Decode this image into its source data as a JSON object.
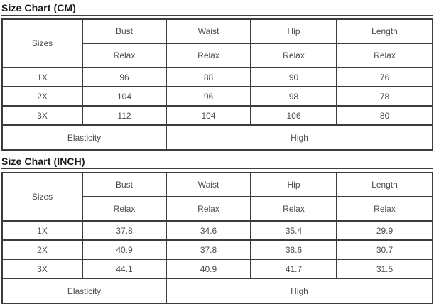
{
  "colors": {
    "table_border": "#3c3c3c",
    "cell_text": "#4d4d4d",
    "title_text": "#1b1b1b",
    "background": "#ffffff"
  },
  "tables": [
    {
      "title": "Size Chart (CM)",
      "sizes_label": "Sizes",
      "columns": [
        "Bust",
        "Waist",
        "Hip",
        "Length"
      ],
      "fit_labels": [
        "Relax",
        "Relax",
        "Relax",
        "Relax"
      ],
      "rows": [
        {
          "size": "1X",
          "values": [
            "96",
            "88",
            "90",
            "76"
          ]
        },
        {
          "size": "2X",
          "values": [
            "104",
            "96",
            "98",
            "78"
          ]
        },
        {
          "size": "3X",
          "values": [
            "112",
            "104",
            "106",
            "80"
          ]
        }
      ],
      "elasticity_label": "Elasticity",
      "elasticity_value": "High"
    },
    {
      "title": "Size Chart (INCH)",
      "sizes_label": "Sizes",
      "columns": [
        "Bust",
        "Waist",
        "Hip",
        "Length"
      ],
      "fit_labels": [
        "Relax",
        "Relax",
        "Relax",
        "Relax"
      ],
      "rows": [
        {
          "size": "1X",
          "values": [
            "37.8",
            "34.6",
            "35.4",
            "29.9"
          ]
        },
        {
          "size": "2X",
          "values": [
            "40.9",
            "37.8",
            "38.6",
            "30.7"
          ]
        },
        {
          "size": "3X",
          "values": [
            "44.1",
            "40.9",
            "41.7",
            "31.5"
          ]
        }
      ],
      "elasticity_label": "Elasticity",
      "elasticity_value": "High"
    }
  ]
}
